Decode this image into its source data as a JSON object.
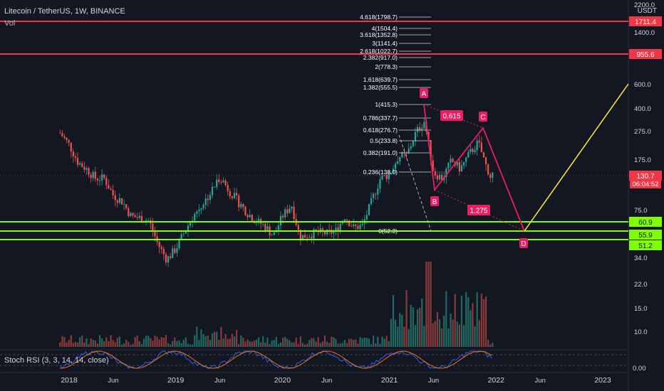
{
  "header": {
    "title": "Litecoin / TetherUS, 1W, BINANCE",
    "volume_label": "Vol",
    "stoch_label": "Stoch RSI (3, 3, 14, 14, close)",
    "currency": "USDT"
  },
  "price_axis": {
    "ticks": [
      "2200.0",
      "1400.0",
      "600.0",
      "400.0",
      "275.0",
      "175.0",
      "75.0",
      "34.0",
      "22.0",
      "15.0",
      "10.0"
    ],
    "badges": [
      {
        "value": "1711.4",
        "color": "#f23645"
      },
      {
        "value": "955.6",
        "color": "#f23645"
      },
      {
        "value": "130.7",
        "color": "#f23645"
      },
      {
        "value": "60.9",
        "color": "#7fff00"
      },
      {
        "value": "55.9",
        "color": "#7fff00"
      },
      {
        "value": "51.2",
        "color": "#7fff00"
      }
    ],
    "countdown": "06:04:52",
    "rsi_tick": "0.00"
  },
  "time_axis": [
    "2018",
    "Jun",
    "2019",
    "Jun",
    "2020",
    "Jun",
    "2021",
    "Jun",
    "2022",
    "Jun",
    "2023"
  ],
  "fib_levels": [
    {
      "label": "4.618(1798.7)",
      "price": 1798.7
    },
    {
      "label": "4(1504.4)",
      "price": 1504.4
    },
    {
      "label": "3.618(1352.8)",
      "price": 1352.8
    },
    {
      "label": "3(1141.4)",
      "price": 1141.4
    },
    {
      "label": "2.618(1022.7)",
      "price": 1022.7
    },
    {
      "label": "2.382(917.0)",
      "price": 917.0
    },
    {
      "label": "2(778.3)",
      "price": 778.3
    },
    {
      "label": "1.618(639.7)",
      "price": 639.7
    },
    {
      "label": "1.382(555.5)",
      "price": 555.5
    },
    {
      "label": "1(415.3)",
      "price": 415.3
    },
    {
      "label": "0.786(337.7)",
      "price": 337.7
    },
    {
      "label": "0.618(276.7)",
      "price": 276.7
    },
    {
      "label": "0.5(233.8)",
      "price": 233.8
    },
    {
      "label": "0.382(191.0)",
      "price": 191.0
    },
    {
      "label": "0.236(138.0)",
      "price": 138.0
    },
    {
      "label": "0(52.3)",
      "price": 52.3
    }
  ],
  "pattern": {
    "points": [
      "A",
      "B",
      "C",
      "D"
    ],
    "ratios": [
      "0.615",
      "1.275"
    ],
    "color": "#e91e63"
  },
  "chart_data": {
    "type": "candlestick",
    "symbol": "Litecoin / TetherUS",
    "interval": "1W",
    "exchange": "BINANCE",
    "price_scale": "log",
    "ylim": [
      20,
      2400
    ],
    "last_price": 130.7,
    "horizontal_lines": [
      {
        "value": 1711.4,
        "color": "#f23645"
      },
      {
        "value": 955.6,
        "color": "#f23645"
      },
      {
        "value": 60.9,
        "color": "#7fff00"
      },
      {
        "value": 55.9,
        "color": "#7fff00"
      },
      {
        "value": 51.2,
        "color": "#7fff00"
      }
    ],
    "price_path": [
      {
        "date": "2017-12-01",
        "price": 300
      },
      {
        "date": "2018-01-01",
        "price": 240
      },
      {
        "date": "2018-02-01",
        "price": 170
      },
      {
        "date": "2018-03-01",
        "price": 150
      },
      {
        "date": "2018-04-01",
        "price": 125
      },
      {
        "date": "2018-05-01",
        "price": 125
      },
      {
        "date": "2018-06-01",
        "price": 90
      },
      {
        "date": "2018-07-01",
        "price": 80
      },
      {
        "date": "2018-08-01",
        "price": 60
      },
      {
        "date": "2018-09-01",
        "price": 58
      },
      {
        "date": "2018-10-01",
        "price": 55
      },
      {
        "date": "2018-11-01",
        "price": 35
      },
      {
        "date": "2018-12-01",
        "price": 26
      },
      {
        "date": "2019-01-01",
        "price": 32
      },
      {
        "date": "2019-02-01",
        "price": 45
      },
      {
        "date": "2019-03-01",
        "price": 60
      },
      {
        "date": "2019-04-01",
        "price": 75
      },
      {
        "date": "2019-05-01",
        "price": 95
      },
      {
        "date": "2019-06-01",
        "price": 130
      },
      {
        "date": "2019-07-01",
        "price": 100
      },
      {
        "date": "2019-08-01",
        "price": 80
      },
      {
        "date": "2019-09-01",
        "price": 65
      },
      {
        "date": "2019-10-01",
        "price": 55
      },
      {
        "date": "2019-11-01",
        "price": 50
      },
      {
        "date": "2019-12-01",
        "price": 41
      },
      {
        "date": "2020-01-01",
        "price": 60
      },
      {
        "date": "2020-02-01",
        "price": 75
      },
      {
        "date": "2020-03-01",
        "price": 40
      },
      {
        "date": "2020-04-01",
        "price": 42
      },
      {
        "date": "2020-05-01",
        "price": 44
      },
      {
        "date": "2020-06-01",
        "price": 43
      },
      {
        "date": "2020-07-01",
        "price": 45
      },
      {
        "date": "2020-08-01",
        "price": 60
      },
      {
        "date": "2020-09-01",
        "price": 48
      },
      {
        "date": "2020-10-01",
        "price": 50
      },
      {
        "date": "2020-11-01",
        "price": 80
      },
      {
        "date": "2020-12-01",
        "price": 125
      },
      {
        "date": "2021-01-01",
        "price": 135
      },
      {
        "date": "2021-02-01",
        "price": 190
      },
      {
        "date": "2021-03-01",
        "price": 195
      },
      {
        "date": "2021-04-01",
        "price": 300
      },
      {
        "date": "2021-05-01",
        "price": 380
      },
      {
        "date": "2021-06-01",
        "price": 140
      },
      {
        "date": "2021-07-01",
        "price": 125
      },
      {
        "date": "2021-08-01",
        "price": 175
      },
      {
        "date": "2021-09-01",
        "price": 150
      },
      {
        "date": "2021-10-01",
        "price": 200
      },
      {
        "date": "2021-11-01",
        "price": 250
      },
      {
        "date": "2021-12-01",
        "price": 150
      },
      {
        "date": "2021-12-20",
        "price": 130.7
      }
    ],
    "harmonic_points": [
      {
        "label": "A",
        "date": "2021-05-10",
        "price": 415.3
      },
      {
        "label": "B",
        "date": "2021-06-21",
        "price": 105
      },
      {
        "label": "C",
        "date": "2021-11-08",
        "price": 295
      },
      {
        "label": "D",
        "date": "2022-04-01",
        "price": 52.3
      }
    ],
    "projection": {
      "from": {
        "date": "2022-04-01",
        "price": 52.3
      },
      "to": {
        "date": "2023-06-01",
        "price": 560
      }
    }
  }
}
